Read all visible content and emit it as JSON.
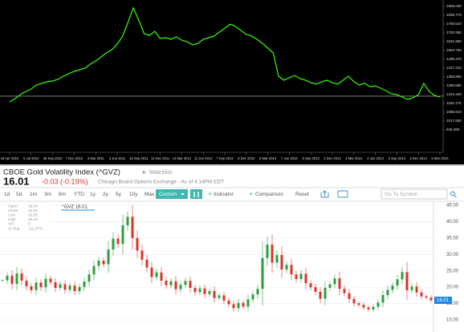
{
  "chart_data": [
    {
      "type": "line",
      "color": "#33ff00",
      "background": "#000000",
      "values": [
        1166,
        1191,
        1222,
        1247,
        1266,
        1297,
        1309,
        1322,
        1328,
        1340,
        1365,
        1384,
        1402,
        1415,
        1427,
        1458,
        1483,
        1514,
        1545,
        1570,
        1613,
        1675,
        1781,
        1893,
        1799,
        1694,
        1681,
        1712,
        1657,
        1663,
        1650,
        1669,
        1644,
        1632,
        1607,
        1619,
        1650,
        1663,
        1675,
        1706,
        1737,
        1768,
        1750,
        1719,
        1688,
        1675,
        1650,
        1619,
        1582,
        1545,
        1365,
        1334,
        1353,
        1371,
        1346,
        1334,
        1315,
        1303,
        1322,
        1334,
        1315,
        1303,
        1334,
        1365,
        1322,
        1297,
        1309,
        1284,
        1290,
        1272,
        1253,
        1228,
        1222,
        1204,
        1185,
        1198,
        1222,
        1309,
        1247,
        1216,
        1204
      ],
      "current_price": 1210,
      "xlim": [
        0,
        80
      ],
      "xticks": [
        {
          "value": 0,
          "label": "19 Apr 2010"
        },
        {
          "value": 4,
          "label": "5 Jul 2010"
        },
        {
          "value": 8,
          "label": "26 Sep 2010"
        },
        {
          "value": 12,
          "label": "7 Dec 2010"
        },
        {
          "value": 16,
          "label": "4 Mar 2011"
        },
        {
          "value": 20,
          "label": "3 Jun 2011"
        },
        {
          "value": 24,
          "label": "15 Sep 2011"
        },
        {
          "value": 28,
          "label": "12 Dec 2011"
        },
        {
          "value": 32,
          "label": "14 Mar 2012"
        },
        {
          "value": 36,
          "label": "11 Jun 2012"
        },
        {
          "value": 40,
          "label": "7 Sep 2012"
        },
        {
          "value": 44,
          "label": "6 Dec 2012"
        },
        {
          "value": 48,
          "label": "6 Mar 2013"
        },
        {
          "value": 52,
          "label": "7 Jun 2013"
        },
        {
          "value": 56,
          "label": "5 Sep 2013"
        },
        {
          "value": 60,
          "label": "2 Dec 2013"
        },
        {
          "value": 64,
          "label": "4 Mar 2014"
        },
        {
          "value": 68,
          "label": "4 Jun 2014"
        },
        {
          "value": 72,
          "label": "3 Sep 2014"
        },
        {
          "value": 76,
          "label": "2 Dec 2014"
        },
        {
          "value": 80,
          "label": "5 Mar 2015"
        }
      ],
      "ylim": [
        775.4,
        1954.7
      ],
      "yticks": [
        {
          "value": 1905.03,
          "label": "1905.030"
        },
        {
          "value": 1836.77,
          "label": "1836.770"
        },
        {
          "value": 1768.51,
          "label": "1768.510"
        },
        {
          "value": 1700.25,
          "label": "1700.250"
        },
        {
          "value": 1631.99,
          "label": "1631.990"
        },
        {
          "value": 1563.73,
          "label": "1563.730"
        },
        {
          "value": 1495.47,
          "label": "1495.470"
        },
        {
          "value": 1427.21,
          "label": "1427.210"
        },
        {
          "value": 1358.95,
          "label": "1358.950"
        },
        {
          "value": 1290.69,
          "label": "1290.690"
        },
        {
          "value": 1222.43,
          "label": "1222.430"
        },
        {
          "value": 1154.17,
          "label": "1154.170"
        },
        {
          "value": 1085.91,
          "label": "1085.910"
        },
        {
          "value": 1017.65,
          "label": "1017.650"
        },
        {
          "value": 949.39,
          "label": "949.390"
        }
      ]
    },
    {
      "type": "candlestick",
      "up_color": "#2e9e3c",
      "down_color": "#d9342b",
      "last_color": "#1e88e5",
      "values": [
        22.1,
        23.5,
        21.0,
        24.2,
        22.0,
        20.3,
        19.1,
        21.4,
        20.0,
        22.6,
        21.5,
        19.8,
        20.9,
        19.2,
        20.5,
        18.8,
        20.1,
        21.7,
        23.9,
        26.5,
        28.1,
        27.0,
        31.5,
        34.8,
        33.2,
        38.9,
        41.5,
        35.0,
        31.2,
        28.4,
        26.0,
        23.1,
        24.5,
        22.0,
        20.6,
        21.8,
        19.4,
        20.7,
        21.9,
        19.8,
        18.5,
        19.6,
        17.9,
        18.8,
        16.7,
        17.5,
        15.9,
        14.8,
        13.6,
        15.2,
        14.1,
        16.3,
        17.8,
        19.5,
        28.9,
        33.0,
        27.5,
        29.8,
        25.4,
        26.8,
        23.9,
        22.5,
        24.1,
        21.2,
        20.0,
        18.6,
        16.5,
        19.8,
        20.9,
        22.7,
        19.5,
        18.2,
        16.4,
        15.1,
        14.6,
        13.8,
        13.2,
        14.0,
        15.3,
        17.6,
        19.2,
        20.5,
        22.4,
        24.6,
        19.1,
        20.2,
        18.4,
        17.2,
        16.8,
        16.01
      ],
      "ylim": [
        8.53,
        46.47
      ],
      "yticks": [
        {
          "value": 45,
          "label": "45.00"
        },
        {
          "value": 40,
          "label": "40.00"
        },
        {
          "value": 35,
          "label": "35.00"
        },
        {
          "value": 30,
          "label": "30.00"
        },
        {
          "value": 25,
          "label": "25.00"
        },
        {
          "value": 20,
          "label": "20.00"
        },
        {
          "value": 15,
          "label": "15.00"
        },
        {
          "value": 10,
          "label": "10.00"
        }
      ],
      "grid": true,
      "legend": "^GVZ 16.01",
      "ohlc": [
        {
          "label": "Open",
          "value": "16.04"
        },
        {
          "label": "Close",
          "value": "16.01"
        },
        {
          "label": "Low",
          "value": "15.59"
        },
        {
          "label": "High",
          "value": "16.22"
        },
        {
          "label": "Vol",
          "value": "0"
        },
        {
          "label": "% Chg",
          "value": "-12.37%"
        }
      ]
    }
  ],
  "panel": {
    "title": "CBOE Gold Volatility Index (^GVZ)",
    "watchlist": "Watchlist",
    "price": "16.01",
    "change": "-0.03 (-0.19%)",
    "exchange": "Chicago Board Options Exchange - As of 4:14PM EDT",
    "ranges": [
      "1d",
      "5d",
      "1m",
      "3m",
      "6m",
      "YTD",
      "1y",
      "2y",
      "5y",
      "10y",
      "Max"
    ],
    "custom": "Custom",
    "indicator": "Indicator",
    "comparison": "Comparison",
    "reset": "Reset",
    "search_placeholder": "Go To Symbol"
  }
}
